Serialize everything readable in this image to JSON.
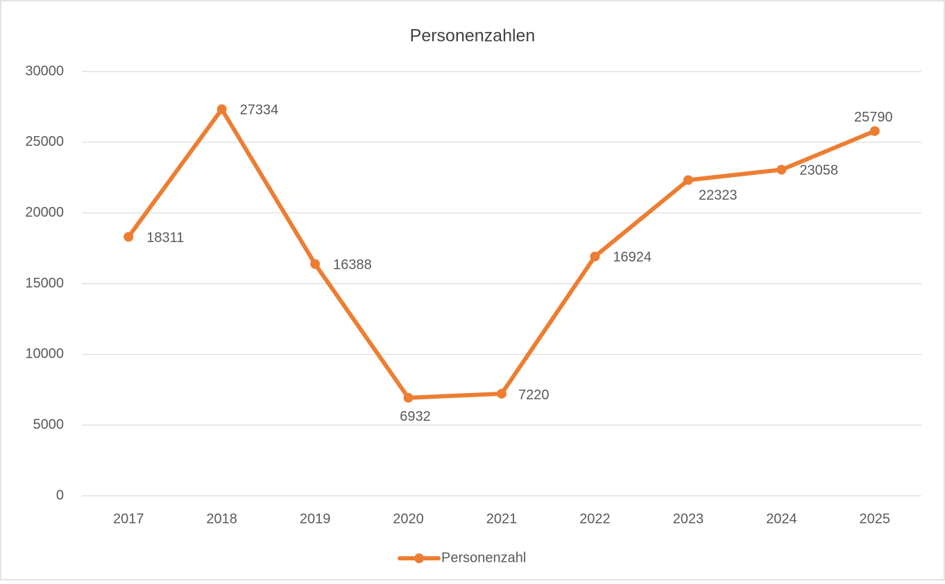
{
  "chart_data": {
    "type": "line",
    "title": "Personenzahlen",
    "categories": [
      "2017",
      "2018",
      "2019",
      "2020",
      "2021",
      "2022",
      "2023",
      "2024",
      "2025"
    ],
    "series": [
      {
        "name": "Personenzahl",
        "color": "#ed7d31",
        "values": [
          18311,
          27334,
          16388,
          6932,
          7220,
          16924,
          22323,
          23058,
          25790
        ]
      }
    ],
    "ylim": [
      0,
      30000
    ],
    "yticks": [
      0,
      5000,
      10000,
      15000,
      20000,
      25000,
      30000
    ],
    "grid": true,
    "legend": "bottom"
  }
}
